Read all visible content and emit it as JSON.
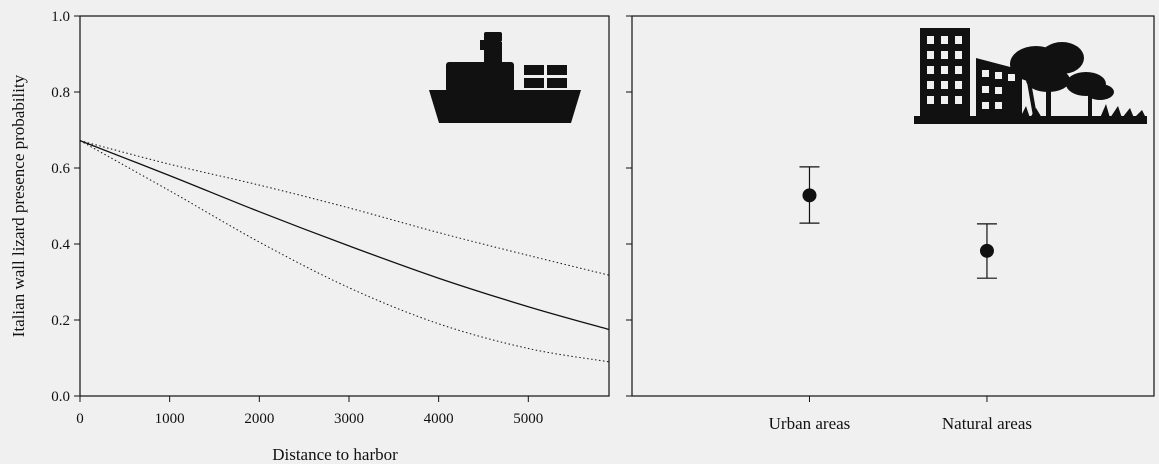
{
  "chart_data": [
    {
      "type": "line",
      "xlabel": "Distance to harbor",
      "ylabel": "Italian wall lizard presence probability",
      "xlim": [
        0,
        5900
      ],
      "ylim": [
        0.0,
        1.0
      ],
      "x_ticks": [
        "0",
        "1000",
        "2000",
        "3000",
        "4000",
        "5000"
      ],
      "y_ticks": [
        "0.0",
        "0.2",
        "0.4",
        "0.6",
        "0.8",
        "1.0"
      ],
      "grid": false,
      "icon": "ship-icon",
      "series": [
        {
          "style": "solid",
          "x": [
            0,
            1000,
            2000,
            3000,
            4000,
            5000,
            5900
          ],
          "y": [
            0.672,
            0.58,
            0.485,
            0.395,
            0.31,
            0.235,
            0.175
          ]
        },
        {
          "style": "dotted",
          "x": [
            0,
            1000,
            2000,
            3000,
            4000,
            5000,
            5900
          ],
          "y": [
            0.672,
            0.61,
            0.555,
            0.495,
            0.43,
            0.37,
            0.318
          ]
        },
        {
          "style": "dotted",
          "x": [
            0,
            1000,
            2000,
            3000,
            4000,
            5000,
            5900
          ],
          "y": [
            0.672,
            0.54,
            0.405,
            0.285,
            0.19,
            0.125,
            0.09
          ]
        }
      ]
    },
    {
      "type": "scatter",
      "categories": [
        "Urban areas",
        "Natural areas"
      ],
      "values": [
        0.528,
        0.382
      ],
      "error_lower": [
        0.455,
        0.31
      ],
      "error_upper": [
        0.603,
        0.453
      ],
      "ylim": [
        0.0,
        1.0
      ],
      "grid": false,
      "icon": "city-nature-icon"
    }
  ]
}
